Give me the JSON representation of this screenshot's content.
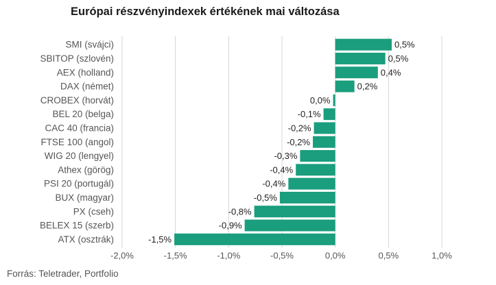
{
  "title": "Európai részvényindexek értékének mai változása",
  "source": "Forrás: Teletrader, Portfolio",
  "colors": {
    "bar": "#1a9e7d",
    "grid": "#d4d4d4",
    "label": "#555555",
    "value": "#222222"
  },
  "chart_data": {
    "type": "bar",
    "orientation": "horizontal",
    "categories": [
      "SMI (svájci)",
      "SBITOP (szlovén)",
      "AEX (holland)",
      "DAX (német)",
      "CROBEX (horvát)",
      "BEL 20 (belga)",
      "CAC 40 (francia)",
      "FTSE 100 (angol)",
      "WIG 20 (lengyel)",
      "Athex (görög)",
      "PSI 20 (portugál)",
      "BUX (magyar)",
      "PX (cseh)",
      "BELEX 15 (szerb)",
      "ATX (osztrák)"
    ],
    "values": [
      0.53,
      0.47,
      0.4,
      0.18,
      -0.02,
      -0.11,
      -0.2,
      -0.21,
      -0.33,
      -0.37,
      -0.44,
      -0.52,
      -0.76,
      -0.85,
      -1.51
    ],
    "labels": [
      "0,5%",
      "0,5%",
      "0,4%",
      "0,2%",
      "0,0%",
      "-0,1%",
      "-0,2%",
      "-0,2%",
      "-0,3%",
      "-0,4%",
      "-0,4%",
      "-0,5%",
      "-0,8%",
      "-0,9%",
      "-1,5%"
    ],
    "xlim": [
      -2.0,
      1.0
    ],
    "xticks": [
      -2.0,
      -1.5,
      -1.0,
      -0.5,
      0.0,
      0.5,
      1.0
    ],
    "xtick_labels": [
      "-2,0%",
      "-1,5%",
      "-1,0%",
      "-0,5%",
      "0,0%",
      "0,5%",
      "1,0%"
    ],
    "grid": true,
    "legend": false
  }
}
